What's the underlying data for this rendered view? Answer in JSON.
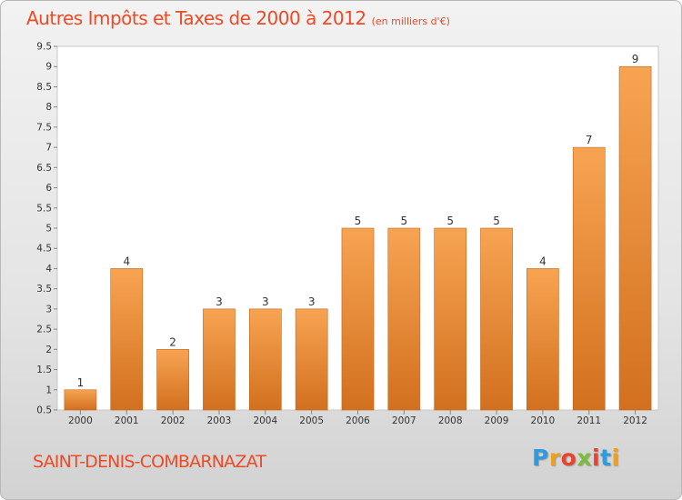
{
  "title": "Autres Impôts et Taxes de 2000 à 2012",
  "subtitle": "(en milliers d'€)",
  "commune": "SAINT-DENIS-COMBARNAZAT",
  "logo": {
    "letters": [
      "P",
      "r",
      "o",
      "x",
      "i",
      "t",
      "i"
    ],
    "colors": [
      "#2e9be0",
      "#f0a020",
      "#e8452e",
      "#7bbd3a",
      "#e8452e",
      "#2e9be0",
      "#f0a020"
    ]
  },
  "colors": {
    "bar_top": "#f7a452",
    "bar_bottom": "#d2701e",
    "title": "#ee4a26"
  },
  "chart_data": {
    "type": "bar",
    "title": "Autres Impôts et Taxes de 2000 à 2012",
    "xlabel": "",
    "ylabel": "",
    "categories": [
      "2000",
      "2001",
      "2002",
      "2003",
      "2004",
      "2005",
      "2006",
      "2007",
      "2008",
      "2009",
      "2010",
      "2011",
      "2012"
    ],
    "values": [
      1,
      4,
      2,
      3,
      3,
      3,
      5,
      5,
      5,
      5,
      4,
      7,
      9
    ],
    "labels": [
      "1",
      "4",
      "2",
      "3",
      "3",
      "3",
      "5",
      "5",
      "5",
      "5",
      "4",
      "7",
      "9"
    ],
    "ylim": [
      0.5,
      9.5
    ],
    "yticks": [
      "0.5",
      "1",
      "1.5",
      "2",
      "2.5",
      "3",
      "3.5",
      "4",
      "4.5",
      "5",
      "5.5",
      "6",
      "6.5",
      "7",
      "7.5",
      "8",
      "8.5",
      "9",
      "9.5"
    ],
    "grid": false,
    "legend": "none"
  }
}
